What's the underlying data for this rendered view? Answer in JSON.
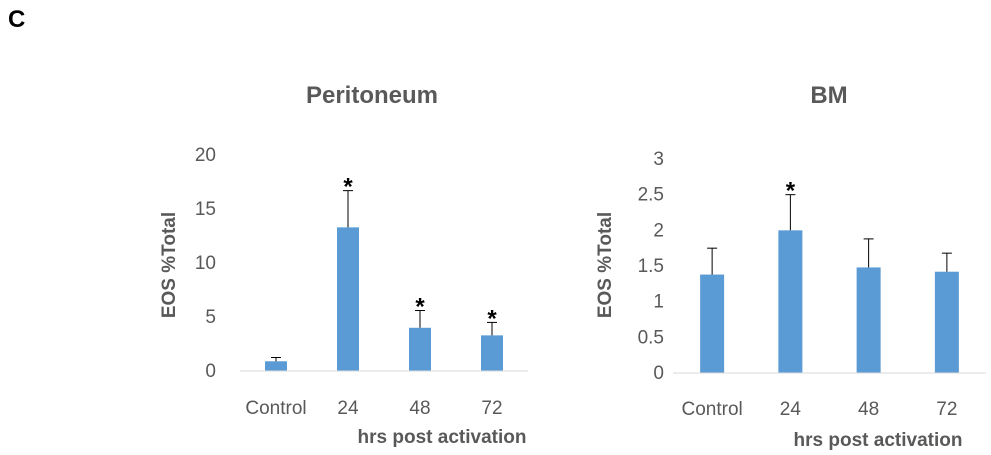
{
  "panel_label": "C",
  "chart_data": [
    {
      "type": "bar",
      "title": "Peritoneum",
      "xlabel": "hrs post activation",
      "ylabel": "EOS %Total",
      "categories": [
        "Control",
        "24",
        "48",
        "72"
      ],
      "values": [
        0.9,
        13.3,
        4.0,
        3.3
      ],
      "errors": [
        0.35,
        3.4,
        1.6,
        1.2
      ],
      "annotations": [
        "",
        "*",
        "*",
        "*"
      ],
      "ylim": [
        0,
        20
      ],
      "yticks": [
        "0",
        "5",
        "10",
        "15",
        "20"
      ],
      "bar_color": "#5B9BD5",
      "grid": false,
      "legend": "none"
    },
    {
      "type": "bar",
      "title": "BM",
      "xlabel": "hrs post activation",
      "ylabel": "EOS %Total",
      "categories": [
        "Control",
        "24",
        "48",
        "72"
      ],
      "values": [
        1.38,
        2.0,
        1.48,
        1.42
      ],
      "errors": [
        0.37,
        0.5,
        0.4,
        0.26
      ],
      "annotations": [
        "",
        "*",
        "",
        ""
      ],
      "ylim": [
        0,
        3
      ],
      "yticks": [
        "0",
        "0.5",
        "1",
        "1.5",
        "2",
        "2.5",
        "3"
      ],
      "bar_color": "#5B9BD5",
      "grid": false,
      "legend": "none"
    }
  ]
}
